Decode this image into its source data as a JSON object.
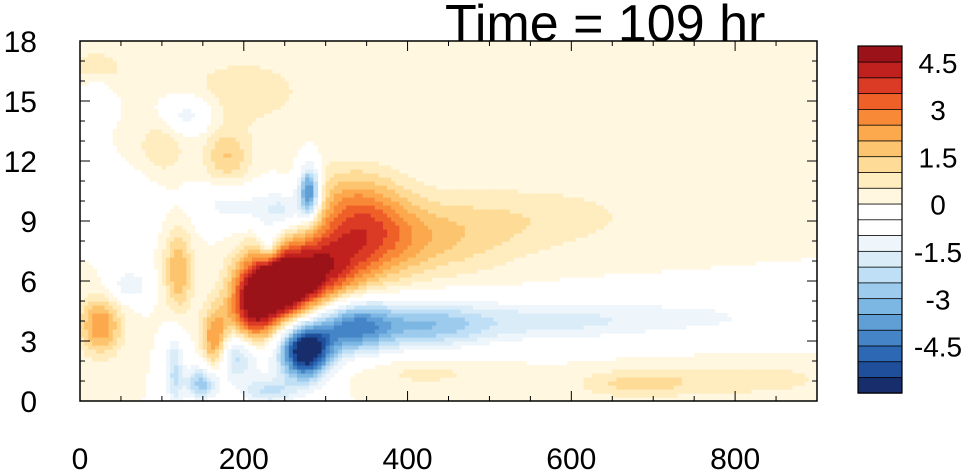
{
  "chart_data": {
    "type": "heatmap",
    "title": "Time = 109 hr",
    "xlabel": "",
    "ylabel": "",
    "xlim": [
      0,
      900
    ],
    "ylim": [
      0,
      18
    ],
    "x_ticks": [
      0,
      200,
      400,
      600,
      800
    ],
    "y_ticks": [
      0,
      3,
      6,
      9,
      12,
      15,
      18
    ],
    "x_tick_labels": [
      "0",
      "200",
      "400",
      "600",
      "800"
    ],
    "y_tick_labels": [
      "0",
      "3",
      "6",
      "9",
      "12",
      "15",
      "18"
    ],
    "colorbar": {
      "levels": [
        -5.5,
        -5,
        -4.5,
        -4,
        -3.5,
        -3,
        -2.5,
        -2,
        -1.5,
        -1,
        -0.5,
        0,
        0.5,
        1,
        1.5,
        2,
        2.5,
        3,
        3.5,
        4,
        4.5,
        5
      ],
      "tick_values": [
        4.5,
        3,
        1.5,
        0,
        -1.5,
        -3,
        -4.5
      ],
      "tick_labels": [
        "4.5",
        "3",
        "1.5",
        "0",
        "-1.5",
        "-3",
        "-4.5"
      ],
      "colors": [
        "#182e6c",
        "#1f4e9a",
        "#2d68b4",
        "#4585c7",
        "#5f9fd6",
        "#7cb6e2",
        "#9dcbed",
        "#bedff5",
        "#d9ecf8",
        "#eef6fc",
        "#ffffff",
        "#ffffff",
        "#fff7e0",
        "#ffecbf",
        "#fedc97",
        "#fdc46f",
        "#fca94e",
        "#f88937",
        "#ee6028",
        "#db3a24",
        "#c0211f",
        "#9b1219"
      ]
    },
    "features": [
      {
        "x": 245,
        "y": 5.8,
        "amp": 6.0,
        "sx": 30,
        "sy": 1.3
      },
      {
        "x": 210,
        "y": 4.5,
        "amp": 3.5,
        "sx": 20,
        "sy": 1.5
      },
      {
        "x": 165,
        "y": 2.8,
        "amp": 3.5,
        "sx": 12,
        "sy": 1.2
      },
      {
        "x": 300,
        "y": 6.5,
        "amp": 3.0,
        "sx": 35,
        "sy": 1.5
      },
      {
        "x": 350,
        "y": 8.3,
        "amp": 2.5,
        "sx": 45,
        "sy": 1.6
      },
      {
        "x": 430,
        "y": 8.0,
        "amp": 1.2,
        "sx": 70,
        "sy": 1.3
      },
      {
        "x": 330,
        "y": 10.2,
        "amp": 1.2,
        "sx": 40,
        "sy": 1.2
      },
      {
        "x": 550,
        "y": 9.2,
        "amp": 0.8,
        "sx": 100,
        "sy": 1.2
      },
      {
        "x": 25,
        "y": 3.8,
        "amp": 2.5,
        "sx": 18,
        "sy": 1.0
      },
      {
        "x": 120,
        "y": 6.5,
        "amp": 2.0,
        "sx": 12,
        "sy": 1.5
      },
      {
        "x": 180,
        "y": 12.2,
        "amp": 1.5,
        "sx": 20,
        "sy": 1.0
      },
      {
        "x": 100,
        "y": 12.8,
        "amp": 1.0,
        "sx": 20,
        "sy": 1.0
      },
      {
        "x": 20,
        "y": 16.5,
        "amp": 1.0,
        "sx": 25,
        "sy": 0.8
      },
      {
        "x": 200,
        "y": 15.5,
        "amp": 0.8,
        "sx": 60,
        "sy": 1.3
      },
      {
        "x": 500,
        "y": 16.5,
        "amp": 0.5,
        "sx": 40,
        "sy": 0.8
      },
      {
        "x": 680,
        "y": 0.9,
        "amp": 1.2,
        "sx": 50,
        "sy": 0.5
      },
      {
        "x": 820,
        "y": 1.1,
        "amp": 0.8,
        "sx": 70,
        "sy": 0.6
      },
      {
        "x": 420,
        "y": 1.5,
        "amp": 0.7,
        "sx": 60,
        "sy": 0.6
      },
      {
        "x": 275,
        "y": 2.5,
        "amp": -6.5,
        "sx": 22,
        "sy": 1.0
      },
      {
        "x": 330,
        "y": 3.8,
        "amp": -4.0,
        "sx": 35,
        "sy": 1.0
      },
      {
        "x": 420,
        "y": 3.8,
        "amp": -2.5,
        "sx": 55,
        "sy": 0.9
      },
      {
        "x": 560,
        "y": 4.0,
        "amp": -1.5,
        "sx": 90,
        "sy": 0.8
      },
      {
        "x": 760,
        "y": 4.2,
        "amp": -1.0,
        "sx": 110,
        "sy": 0.8
      },
      {
        "x": 190,
        "y": 2.3,
        "amp": -3.0,
        "sx": 25,
        "sy": 0.9
      },
      {
        "x": 150,
        "y": 0.9,
        "amp": -3.0,
        "sx": 15,
        "sy": 0.6
      },
      {
        "x": 230,
        "y": 0.5,
        "amp": -2.0,
        "sx": 25,
        "sy": 0.5
      },
      {
        "x": 115,
        "y": 1.5,
        "amp": -2.0,
        "sx": 8,
        "sy": 1.5
      },
      {
        "x": 280,
        "y": 10.5,
        "amp": -4.5,
        "sx": 9,
        "sy": 0.9
      },
      {
        "x": 250,
        "y": 9.5,
        "amp": -2.0,
        "sx": 25,
        "sy": 0.8
      },
      {
        "x": 180,
        "y": 9.8,
        "amp": -1.2,
        "sx": 30,
        "sy": 0.8
      },
      {
        "x": 230,
        "y": 7.8,
        "amp": -2.0,
        "sx": 9,
        "sy": 0.6
      },
      {
        "x": 130,
        "y": 14.3,
        "amp": -1.5,
        "sx": 22,
        "sy": 0.7
      },
      {
        "x": 60,
        "y": 5.8,
        "amp": -1.5,
        "sx": 18,
        "sy": 0.6
      },
      {
        "x": 20,
        "y": 15.5,
        "amp": -1.0,
        "sx": 15,
        "sy": 0.8
      },
      {
        "x": 60,
        "y": 9.5,
        "amp": -0.8,
        "sx": 25,
        "sy": 1.2
      }
    ]
  }
}
